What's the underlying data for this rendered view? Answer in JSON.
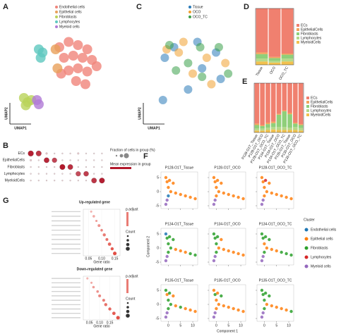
{
  "chart_data": [
    {
      "type": "scatter",
      "panel": "A",
      "xlabel": "UMAP1",
      "ylabel": "UMAP2",
      "xlim": [
        0,
        10
      ],
      "ylim": [
        0,
        10
      ],
      "series": [
        {
          "name": "Endothelial cells",
          "color": "#f0857a",
          "x": [
            5,
            6,
            7,
            8,
            5.5,
            6.5,
            7.5,
            8.5,
            6,
            7,
            8,
            5.2,
            6.8,
            7.8,
            9
          ],
          "y": [
            7,
            7.5,
            7.2,
            6.8,
            6,
            6.2,
            6,
            5.8,
            4.8,
            5,
            4.7,
            4.5,
            3.8,
            3.5,
            5.2
          ]
        },
        {
          "name": "Epithelial cells",
          "color": "#e9a05a",
          "x": [
            4.6,
            4.8
          ],
          "y": [
            6.8,
            5
          ]
        },
        {
          "name": "Fibroblasts",
          "color": "#b9d35a",
          "x": [
            1.2,
            1.6,
            2.0,
            1.4
          ],
          "y": [
            2.2,
            1.8,
            2.0,
            1.5
          ]
        },
        {
          "name": "Lymphocytes",
          "color": "#5fc8bf",
          "x": [
            2.8,
            3.2,
            3.0
          ],
          "y": [
            6.8,
            6.5,
            6.0
          ]
        },
        {
          "name": "Myeloid cells",
          "color": "#b07ad6",
          "x": [
            2.6,
            2.8
          ],
          "y": [
            2.0,
            1.6
          ]
        }
      ]
    },
    {
      "type": "scatter",
      "panel": "C",
      "xlabel": "UMAP1",
      "ylabel": "UMAP2",
      "xlim": [
        0,
        10
      ],
      "ylim": [
        0,
        10
      ],
      "series": [
        {
          "name": "Tissue",
          "color": "#2a7ab8",
          "x": [
            2,
            3,
            6,
            7.5,
            8,
            4.5,
            1.8,
            5.5
          ],
          "y": [
            6,
            7,
            5,
            6.5,
            4,
            3,
            2,
            7.5
          ]
        },
        {
          "name": "OCO",
          "color": "#f0a030",
          "x": [
            3.5,
            5,
            6.5,
            8.5,
            7,
            4,
            2.2
          ],
          "y": [
            6.5,
            4.5,
            6,
            5.5,
            3.5,
            7.5,
            6.8
          ]
        },
        {
          "name": "OCO_TC",
          "color": "#3aa04a",
          "x": [
            2.5,
            4.5,
            6,
            7.8,
            5.8,
            3.2,
            8.8
          ],
          "y": [
            7.2,
            5.5,
            4.2,
            7,
            7,
            4.8,
            4.5
          ]
        }
      ]
    },
    {
      "type": "stacked_bar",
      "panel": "D",
      "ylim": [
        0,
        1
      ],
      "categories": [
        "Tissue",
        "OCO",
        "OCO_TC"
      ],
      "series": [
        {
          "name": "ECs",
          "color": "#f0806f",
          "values": [
            0.78,
            0.86,
            0.8
          ]
        },
        {
          "name": "EpithelialCells",
          "color": "#f3a45c",
          "values": [
            0.03,
            0.02,
            0.02
          ]
        },
        {
          "name": "Fibroblasts",
          "color": "#8fcf7a",
          "values": [
            0.08,
            0.05,
            0.07
          ]
        },
        {
          "name": "Lymphocytes",
          "color": "#b5d98a",
          "values": [
            0.05,
            0.03,
            0.05
          ]
        },
        {
          "name": "MyeloidCells",
          "color": "#f2c14e",
          "values": [
            0.06,
            0.04,
            0.06
          ]
        }
      ]
    },
    {
      "type": "stacked_bar",
      "panel": "E",
      "ylim": [
        0,
        1
      ],
      "categories": [
        "P128-O1T_Tissue",
        "P128-O1T_OCO",
        "P128-O1T_OCO_TC",
        "P134-O1T_Tissue",
        "P134-O1T_OCO",
        "P134-O1T_OCO_TC",
        "P135-O1T_Tissue",
        "P135-O1T_OCO",
        "P135-O1T_OCO_TC"
      ],
      "series": [
        {
          "name": "ECs",
          "color": "#f0806f",
          "values": [
            0.82,
            0.85,
            0.8,
            0.78,
            0.62,
            0.55,
            0.6,
            0.8,
            0.83
          ]
        },
        {
          "name": "EpithelialCells",
          "color": "#f3a45c",
          "values": [
            0.03,
            0.02,
            0.03,
            0.03,
            0.02,
            0.02,
            0.03,
            0.02,
            0.02
          ]
        },
        {
          "name": "Fibroblasts",
          "color": "#8fcf7a",
          "values": [
            0.07,
            0.05,
            0.07,
            0.08,
            0.25,
            0.32,
            0.27,
            0.07,
            0.06
          ]
        },
        {
          "name": "Lymphocytes",
          "color": "#b5d98a",
          "values": [
            0.04,
            0.04,
            0.05,
            0.05,
            0.06,
            0.06,
            0.05,
            0.06,
            0.05
          ]
        },
        {
          "name": "MyeloidCells",
          "color": "#f2c14e",
          "values": [
            0.04,
            0.04,
            0.05,
            0.06,
            0.05,
            0.05,
            0.05,
            0.05,
            0.04
          ]
        }
      ]
    },
    {
      "type": "dotmatrix",
      "panel": "B",
      "rows": [
        "ECs",
        "EpithelialCells",
        "Fibroblasts",
        "Lymphocytes",
        "MyeloidCells"
      ],
      "categories": [
        null,
        null,
        null,
        null,
        null,
        null,
        null,
        null,
        null,
        null
      ],
      "size_legend": "Fraction of cells in group (%)",
      "color_legend": "Mean expression in group",
      "color": "#b2182b",
      "values": [
        [
          90,
          85,
          10,
          5,
          5,
          5,
          10,
          5,
          5,
          5
        ],
        [
          10,
          5,
          80,
          70,
          5,
          5,
          5,
          5,
          5,
          5
        ],
        [
          5,
          5,
          5,
          5,
          85,
          80,
          5,
          5,
          5,
          5
        ],
        [
          5,
          5,
          5,
          5,
          5,
          5,
          70,
          75,
          5,
          5
        ],
        [
          5,
          5,
          5,
          5,
          5,
          5,
          5,
          5,
          80,
          85
        ]
      ],
      "expression": [
        [
          2.5,
          2.2,
          0.3,
          0.1,
          0.1,
          0.1,
          0.2,
          0.1,
          0.1,
          0.1
        ],
        [
          0.2,
          0.1,
          2.4,
          2.0,
          0.1,
          0.1,
          0.1,
          0.1,
          0.1,
          0.1
        ],
        [
          0.1,
          0.1,
          0.1,
          0.1,
          2.6,
          2.3,
          0.1,
          0.1,
          0.1,
          0.1
        ],
        [
          0.1,
          0.1,
          0.1,
          0.1,
          0.1,
          0.1,
          1.9,
          2.1,
          0.1,
          0.1
        ],
        [
          0.1,
          0.1,
          0.1,
          0.1,
          0.1,
          0.1,
          0.1,
          0.1,
          2.2,
          2.5
        ]
      ]
    },
    {
      "type": "enrichment",
      "panel": "G",
      "title": "Up-regulated gene",
      "title_color": "#d7261e",
      "color": "#e0443a",
      "xlabel": "Gene ratio",
      "size_legend": "Count",
      "color_legend": "p.adjust",
      "xlim": [
        0.03,
        0.17
      ],
      "xticks": [
        0.05,
        {
          "value": 0.1,
          "label": "0.10"
        },
        0.15
      ],
      "categories": [
        null,
        null,
        null,
        null,
        null,
        null,
        null,
        null,
        null,
        null
      ],
      "values": [
        0.06,
        0.07,
        0.08,
        0.09,
        0.1,
        0.11,
        0.12,
        0.13,
        0.14,
        0.15
      ],
      "counts": [
        3,
        4,
        3,
        5,
        4,
        6,
        5,
        7,
        6,
        8
      ]
    },
    {
      "type": "enrichment",
      "title": "Down-regulated gene",
      "title_color": "#2e8b3a",
      "color": "#e0443a",
      "xlabel": "Gene ratio",
      "size_legend": "Count",
      "color_legend": "p.adjust",
      "xlim": [
        0.02,
        0.2
      ],
      "xticks": [
        0.05,
        {
          "value": 0.1,
          "label": "0.10"
        },
        0.15
      ],
      "categories": [
        null,
        null,
        null,
        null,
        null,
        null,
        null,
        null,
        null,
        null
      ],
      "values": [
        0.04,
        0.06,
        0.07,
        0.09,
        0.1,
        0.12,
        0.13,
        0.15,
        0.17,
        0.19
      ],
      "counts": [
        3,
        3,
        4,
        4,
        5,
        5,
        6,
        6,
        7,
        8
      ]
    },
    {
      "type": "trajectory",
      "panel": "F",
      "xlabel": "Component 1",
      "ylabel": "Component 2",
      "xlim": [
        -3,
        12
      ],
      "ylim": [
        -6,
        7
      ],
      "xticks": [
        0,
        5,
        10
      ],
      "yticks": [
        -5,
        0,
        5
      ],
      "legend_title": "Cluster",
      "clusters": [
        {
          "name": "Endothelial cells",
          "color": "#1f77b4"
        },
        {
          "name": "Epithelial cells",
          "color": "#ff7f0e"
        },
        {
          "name": "Fibroblasts",
          "color": "#2ca02c"
        },
        {
          "name": "Lymphocytes",
          "color": "#d62728"
        },
        {
          "name": "Myeloid cells",
          "color": "#9467bd"
        }
      ],
      "panels": [
        {
          "title": "P128-O1T_Tissue",
          "x": [
            -1,
            -0.5,
            0,
            1,
            3,
            5,
            7,
            9,
            11,
            0,
            -0.5,
            -1,
            0.5,
            2
          ],
          "y": [
            5,
            3.5,
            1.5,
            0,
            -0.5,
            -1,
            -1.5,
            -2,
            -2.5,
            -1.5,
            -3,
            -4.5,
            4,
            3
          ],
          "cluster": [
            1,
            1,
            1,
            1,
            1,
            1,
            1,
            1,
            1,
            0,
            4,
            4,
            1,
            1
          ]
        },
        {
          "title": "P128-O1T_OCO",
          "x": [
            -1,
            -0.5,
            0,
            1,
            3,
            5,
            7,
            9,
            11,
            0,
            -0.5,
            -1,
            0.5,
            2
          ],
          "y": [
            5,
            3.5,
            1.5,
            0,
            -0.5,
            -1,
            -1.5,
            -2,
            -2.5,
            -1.5,
            -3,
            -4.5,
            4,
            3
          ],
          "cluster": [
            1,
            1,
            1,
            1,
            1,
            1,
            1,
            1,
            1,
            1,
            4,
            4,
            1,
            1
          ]
        },
        {
          "title": "P128-O1T_OCO_TC",
          "x": [
            -1,
            -0.5,
            0,
            1,
            3,
            5,
            7,
            9,
            11,
            0,
            -0.5,
            -1,
            0.5,
            2
          ],
          "y": [
            5,
            3.5,
            1.5,
            0,
            -0.5,
            -1,
            -1.5,
            -2,
            -2.5,
            -1.5,
            -3,
            -4.5,
            4,
            3
          ],
          "cluster": [
            1,
            1,
            1,
            1,
            1,
            1,
            1,
            1,
            1,
            1,
            4,
            4,
            3,
            1
          ]
        },
        {
          "title": "P134-O1T_Tissue",
          "x": [
            -1,
            -0.5,
            0,
            1,
            3,
            5,
            7,
            9,
            11,
            0,
            -0.5,
            -1,
            0.5,
            2
          ],
          "y": [
            5,
            3.5,
            1.5,
            0,
            -0.5,
            -1,
            -1.5,
            -2,
            -2.5,
            -1.5,
            -3,
            -4.5,
            4,
            3
          ],
          "cluster": [
            0,
            2,
            2,
            2,
            1,
            1,
            1,
            2,
            2,
            2,
            4,
            4,
            2,
            2
          ]
        },
        {
          "title": "P134-O1T_OCO",
          "x": [
            -1,
            -0.5,
            0,
            1,
            3,
            5,
            7,
            9,
            11,
            0,
            -0.5,
            -1,
            0.5,
            2
          ],
          "y": [
            5,
            3.5,
            1.5,
            0,
            -0.5,
            -1,
            -1.5,
            -2,
            -2.5,
            -1.5,
            -3,
            -4.5,
            4,
            3
          ],
          "cluster": [
            2,
            2,
            2,
            1,
            1,
            1,
            1,
            1,
            1,
            2,
            4,
            4,
            2,
            1
          ]
        },
        {
          "title": "P134-O1T_OCO_TC",
          "x": [
            -1,
            -0.5,
            0,
            1,
            3,
            5,
            7,
            9,
            11,
            0,
            -0.5,
            -1,
            0.5,
            2
          ],
          "y": [
            5,
            3.5,
            1.5,
            0,
            -0.5,
            -1,
            -1.5,
            -2,
            -2.5,
            -1.5,
            -3,
            -4.5,
            4,
            3
          ],
          "cluster": [
            2,
            2,
            1,
            1,
            1,
            1,
            2,
            2,
            2,
            2,
            4,
            4,
            2,
            2
          ]
        },
        {
          "title": "P135-O1T_Tissue",
          "x": [
            -1,
            -0.5,
            0,
            1,
            3,
            5,
            7,
            9,
            11,
            0,
            -0.5,
            -1,
            0.5,
            2
          ],
          "y": [
            5,
            3.5,
            1.5,
            0,
            -0.5,
            -1,
            -1.5,
            -2,
            -2.5,
            -1.5,
            -3,
            -4.5,
            4,
            3
          ],
          "cluster": [
            2,
            1,
            2,
            2,
            1,
            2,
            1,
            1,
            1,
            2,
            4,
            4,
            2,
            1
          ]
        },
        {
          "title": "P135-O1T_OCO",
          "x": [
            -1,
            -0.5,
            0,
            1,
            3,
            5,
            7,
            9,
            11,
            0,
            -0.5,
            -1,
            0.5,
            2
          ],
          "y": [
            5,
            3.5,
            1.5,
            0,
            -0.5,
            -1,
            -1.5,
            -2,
            -2.5,
            -1.5,
            -3,
            -4.5,
            4,
            3
          ],
          "cluster": [
            1,
            2,
            1,
            1,
            1,
            1,
            1,
            1,
            1,
            1,
            4,
            4,
            1,
            2
          ]
        },
        {
          "title": "P135-O1T_OCO_TC",
          "x": [
            -1,
            -0.5,
            0,
            1,
            3,
            5,
            7,
            9,
            11,
            0,
            -0.5,
            -1,
            0.5,
            2
          ],
          "y": [
            5,
            3.5,
            1.5,
            0,
            -0.5,
            -1,
            -1.5,
            -2,
            -2.5,
            -1.5,
            -3,
            -4.5,
            4,
            3
          ],
          "cluster": [
            2,
            2,
            2,
            1,
            1,
            1,
            1,
            1,
            2,
            2,
            4,
            4,
            2,
            2
          ]
        }
      ]
    }
  ]
}
